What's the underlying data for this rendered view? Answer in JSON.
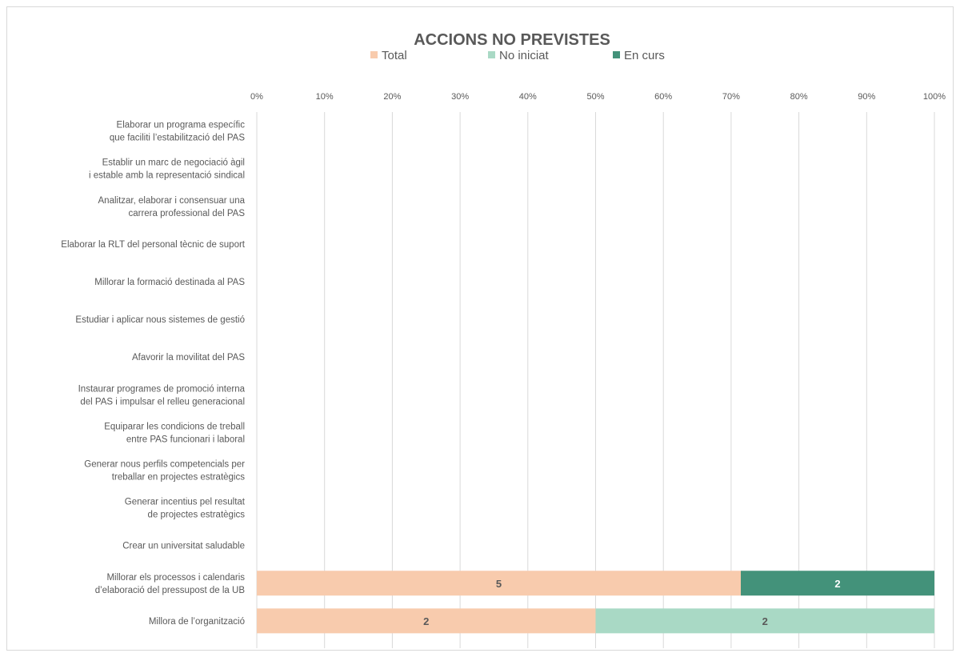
{
  "chart_data": {
    "type": "bar",
    "orientation": "horizontal",
    "stacked": true,
    "percent_stacked": true,
    "title": "ACCIONS NO PREVISTES",
    "legend_position": "top",
    "grid": true,
    "xlim": [
      0,
      100
    ],
    "x_ticks": [
      "0%",
      "10%",
      "20%",
      "30%",
      "40%",
      "50%",
      "60%",
      "70%",
      "80%",
      "90%",
      "100%"
    ],
    "categories": [
      [
        "Elaborar un programa específic",
        "que faciliti l’estabilització del PAS"
      ],
      [
        "Establir un marc de negociació àgil",
        "i estable amb la representació sindical"
      ],
      [
        "Analitzar, elaborar i consensuar una",
        "carrera professional del PAS"
      ],
      [
        "Elaborar la RLT del personal tècnic de suport"
      ],
      [
        "Millorar la formació destinada al PAS"
      ],
      [
        "Estudiar i aplicar nous sistemes de gestió"
      ],
      [
        "Afavorir la movilitat del PAS"
      ],
      [
        "Instaurar programes de promoció interna",
        "del PAS i impulsar el relleu generacional"
      ],
      [
        "Equiparar les condicions de treball",
        "entre PAS funcionari i laboral"
      ],
      [
        "Generar nous perfils competencials per",
        "treballar en projectes estratègics"
      ],
      [
        "Generar incentius pel resultat",
        "de projectes estratègics"
      ],
      [
        "Crear un universitat saludable"
      ],
      [
        "Millorar els processos i calendaris",
        "d’elaboració del pressupost de la UB"
      ],
      [
        "Millora de l’organització"
      ]
    ],
    "series": [
      {
        "name": "Total",
        "color": "#f8cbad",
        "values": [
          0,
          0,
          0,
          0,
          0,
          0,
          0,
          0,
          0,
          0,
          0,
          0,
          5,
          2
        ]
      },
      {
        "name": "No iniciat",
        "color": "#a9d9c5",
        "values": [
          0,
          0,
          0,
          0,
          0,
          0,
          0,
          0,
          0,
          0,
          0,
          0,
          0,
          2
        ]
      },
      {
        "name": "En curs",
        "color": "#43927a",
        "values": [
          0,
          0,
          0,
          0,
          0,
          0,
          0,
          0,
          0,
          0,
          0,
          0,
          2,
          0
        ]
      }
    ],
    "data_label_colors": [
      "#595959",
      "#595959",
      "#ffffff"
    ]
  }
}
